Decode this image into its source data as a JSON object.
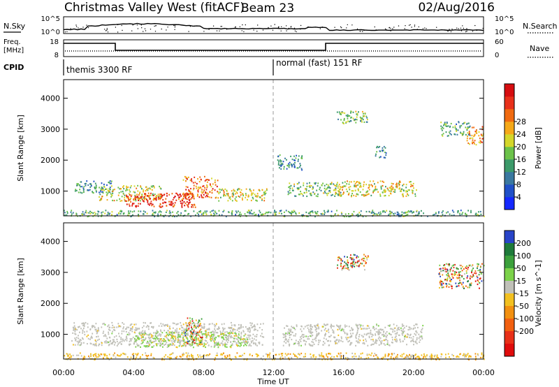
{
  "header": {
    "title": "Christmas Valley West (fitACF)",
    "beam": "Beam 23",
    "date": "02/Aug/2016"
  },
  "panels": {
    "nsky": {
      "left_label": "N.Sky",
      "right_label": "N.Search",
      "tick_top": "10^5",
      "tick_bottom": "10^0"
    },
    "freq": {
      "left_label_1": "Freq.",
      "left_label_2": "[MHz]",
      "left_tick_top": "18",
      "left_tick_bottom": "8",
      "right_label": "Nave",
      "right_tick_top": "60",
      "right_tick_bottom": "0"
    },
    "cpid": {
      "label": "CPID",
      "segments": [
        {
          "text": "themis 3300 RF",
          "start_h": 0
        },
        {
          "text": "normal (fast) 151 RF",
          "start_h": 12
        }
      ]
    }
  },
  "chart_data": [
    {
      "type": "heatmap",
      "name": "power",
      "ylabel": "Slant Range [km]",
      "ylim": [
        200,
        4600
      ],
      "yticks": [
        "1000",
        "2000",
        "3000",
        "4000"
      ],
      "ytick_values": [
        1000,
        2000,
        3000,
        4000
      ],
      "xlim_hours": [
        0,
        24
      ],
      "colorbar": {
        "label": "Power [dB]",
        "ticks": [
          "4",
          "8",
          "12",
          "16",
          "20",
          "24",
          "28"
        ],
        "tick_values": [
          4,
          8,
          12,
          16,
          20,
          24,
          28
        ],
        "range": [
          0,
          32
        ],
        "colors": [
          "#1428ff",
          "#2050c8",
          "#3a78a0",
          "#3c9a6a",
          "#6cc24a",
          "#d4d62a",
          "#f5a818",
          "#f06a10",
          "#e8301a",
          "#d60d10"
        ]
      },
      "echo_regions": [
        {
          "t0": 0.6,
          "t1": 2.8,
          "r0": 950,
          "r1": 1350,
          "level": 10
        },
        {
          "t0": 2.0,
          "t1": 5.6,
          "r0": 700,
          "r1": 1200,
          "level": 18
        },
        {
          "t0": 3.5,
          "t1": 7.5,
          "r0": 500,
          "r1": 950,
          "level": 28
        },
        {
          "t0": 6.8,
          "t1": 8.8,
          "r0": 800,
          "r1": 1500,
          "level": 24
        },
        {
          "t0": 8.8,
          "t1": 11.6,
          "r0": 700,
          "r1": 1100,
          "level": 18
        },
        {
          "t0": 12.8,
          "t1": 16.0,
          "r0": 850,
          "r1": 1300,
          "level": 14
        },
        {
          "t0": 15.5,
          "t1": 20.2,
          "r0": 850,
          "r1": 1350,
          "level": 18
        },
        {
          "t0": 0.0,
          "t1": 24.0,
          "r0": 200,
          "r1": 400,
          "level": 12
        },
        {
          "t0": 15.6,
          "t1": 17.4,
          "r0": 3200,
          "r1": 3600,
          "level": 14
        },
        {
          "t0": 21.5,
          "t1": 23.2,
          "r0": 2800,
          "r1": 3300,
          "level": 12
        },
        {
          "t0": 23.0,
          "t1": 24.0,
          "r0": 2500,
          "r1": 3100,
          "level": 22
        },
        {
          "t0": 12.2,
          "t1": 13.6,
          "r0": 1700,
          "r1": 2200,
          "level": 10
        },
        {
          "t0": 17.8,
          "t1": 18.4,
          "r0": 2100,
          "r1": 2500,
          "level": 10
        }
      ]
    },
    {
      "type": "heatmap",
      "name": "velocity",
      "xlabel": "Time UT",
      "ylabel": "Slant Range [km]",
      "ylim": [
        200,
        4600
      ],
      "yticks": [
        "1000",
        "2000",
        "3000",
        "4000"
      ],
      "ytick_values": [
        1000,
        2000,
        3000,
        4000
      ],
      "xlim_hours": [
        0,
        24
      ],
      "xticks": [
        "00:00",
        "04:00",
        "08:00",
        "12:00",
        "16:00",
        "20:00",
        "00:00"
      ],
      "xtick_values": [
        0,
        4,
        8,
        12,
        16,
        20,
        24
      ],
      "colorbar": {
        "label": "Velocity [m s^-1]",
        "ticks": [
          "200",
          "100",
          "50",
          "15",
          "-15",
          "-50",
          "-100",
          "-200"
        ],
        "colors": [
          "#2844c8",
          "#1e7a3a",
          "#3ca03c",
          "#7cd24a",
          "#c0c0b8",
          "#f2c020",
          "#f29010",
          "#f26010",
          "#e83018",
          "#e00c0c"
        ]
      },
      "echo_regions": [
        {
          "t0": 0.4,
          "t1": 11.4,
          "r0": 650,
          "r1": 1400,
          "class": "ground"
        },
        {
          "t0": 12.5,
          "t1": 20.5,
          "r0": 650,
          "r1": 1350,
          "class": "ground"
        },
        {
          "t0": 4.0,
          "t1": 10.5,
          "r0": 600,
          "r1": 1100,
          "class": "positive-low"
        },
        {
          "t0": 6.9,
          "t1": 7.9,
          "r0": 700,
          "r1": 1550,
          "class": "mixed"
        },
        {
          "t0": 0.0,
          "t1": 24.0,
          "r0": 200,
          "r1": 420,
          "class": "negative-low"
        },
        {
          "t0": 15.6,
          "t1": 17.4,
          "r0": 3100,
          "r1": 3600,
          "class": "mixed"
        },
        {
          "t0": 21.4,
          "t1": 24.0,
          "r0": 2500,
          "r1": 3300,
          "class": "mixed"
        }
      ]
    }
  ]
}
